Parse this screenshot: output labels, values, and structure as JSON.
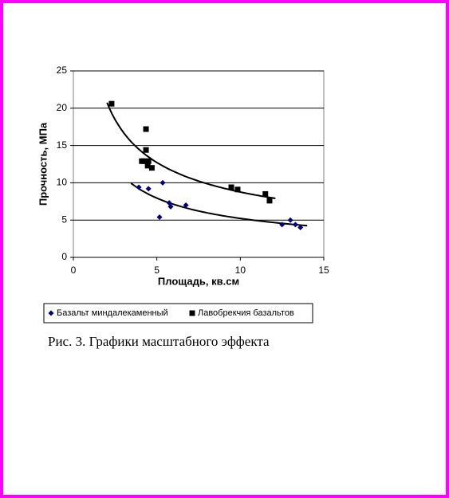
{
  "chart_data": {
    "type": "scatter",
    "x_label": "Площадь, кв.см",
    "y_label": "Прочность, МПа",
    "xlim": [
      0,
      15
    ],
    "xticks": [
      0,
      5,
      10,
      15
    ],
    "ylim": [
      0,
      25
    ],
    "yticks": [
      0,
      5,
      10,
      15,
      20,
      25
    ],
    "grid": "y",
    "legend": "bottom",
    "trendline": "power",
    "series": [
      {
        "name": "Базальт миндалекаменный",
        "color": "#000080",
        "marker": "diamond",
        "x": [
          3.92,
          4.5,
          5.35,
          5.16,
          5.74,
          5.83,
          6.74,
          12.5,
          13.0,
          13.3,
          13.6
        ],
        "values": [
          9.4,
          9.2,
          10.0,
          5.4,
          7.3,
          6.8,
          7.0,
          4.4,
          5.0,
          4.4,
          4.0
        ]
      },
      {
        "name": "Лавобрекчия базальтов",
        "color": "#000000",
        "marker": "square",
        "x": [
          2.29,
          4.35,
          4.35,
          4.1,
          4.25,
          4.5,
          4.45,
          4.7,
          9.46,
          9.84,
          11.5,
          11.75
        ],
        "values": [
          20.6,
          17.2,
          14.4,
          12.9,
          12.9,
          12.9,
          12.3,
          12.0,
          9.4,
          9.1,
          8.5,
          7.6
        ]
      }
    ]
  },
  "caption": "Рис. 3. Графики масштабного эффекта"
}
